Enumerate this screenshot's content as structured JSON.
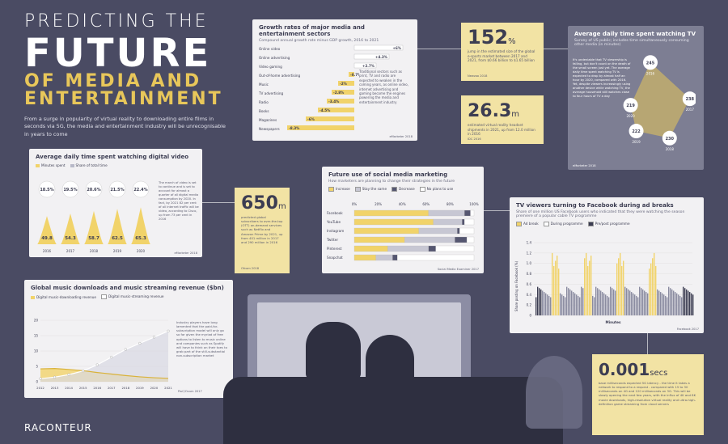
{
  "header": {
    "title1": "PREDICTING THE",
    "title2": "FUTURE",
    "title3": "OF MEDIA AND",
    "title4": "ENTERTAINMENT",
    "intro": "From a surge in popularity of virtual reality to downloading entire films in seconds via 5G, the media and entertainment industry will be unrecognisable in years to come"
  },
  "brand": {
    "logo": "RACONTEUR"
  },
  "colors": {
    "background": "#4a4b63",
    "gold": "#f1d36a",
    "panel": "#f2f1f3",
    "dark": "#3c3d52"
  },
  "growth": {
    "title": "Growth rates of major media and entertainment sectors",
    "subtitle": "Compound annual growth rate minus GDP growth, 2016 to 2021",
    "note": "Traditional sectors such as print, TV and radio are expected to weaken in the coming years, as online video, internet advertising and gaming become the engines powering the media and entertainment industry",
    "source": "eMarketer 2018"
  },
  "stat152": {
    "value": "152",
    "unit": "%",
    "text": "jump in the estimated size of the global e-sports market between 2017 and 2021, from $0.66 billion to $1.65 billion",
    "source": "Newzoo 2018"
  },
  "stat263": {
    "value": "26.3",
    "unit": "m",
    "text": "estimated virtual reality headset shipments in 2021, up from 12.0 million in 2016",
    "source": "IDC 2016"
  },
  "stat650": {
    "value": "650",
    "unit": "m",
    "text": "predicted global subscribers to over-the-top (OTT) on-demand services such as Netflix and Amazon Prime by 2021, up from 401 million in 2017 and 290 million in 2016",
    "source": "Ofcom 2018"
  },
  "stat0001": {
    "value": "0.001",
    "unit": "secs",
    "text": "base milliseconds expected 5G latency - the time it takes a network to respond to a request - compared with 15 to 30 milliseconds on 4G and 120 milliseconds on 3G. This will be slowly opening the next few years, with the influx of 4K and 8K movie downloads, high-resolution virtual reality and ultra-high-definition game streaming from cloud servers"
  },
  "tvtime": {
    "title": "Average daily time spent watching TV",
    "subtitle": "Survey of US public; includes time simultaneously consuming other media (in minutes)",
    "note": "It's undeniable that TV viewership is falling, but don't count on the death of the small screen just yet. The average daily time spent watching TV is expected to drop by almost half an hour by 2020, compared with 2016. Yet, despite viewers increasingly using another device while watching TV, the average household still watches close to four hours of TV a day",
    "source": "eMarketer 2018"
  },
  "video": {
    "title": "Average daily time spent watching digital video",
    "legend_minutes": "Minutes spent",
    "legend_share": "Share of total time",
    "note": "The march of video is set to continue and is set to account for almost a quarter of all digital media consumption by 2020. In fact, by 2021 82 per cent of all internet traffic will be video, according to Cisco, up from 73 per cent in 2016",
    "source": "eMarketer 2018"
  },
  "social": {
    "title": "Future use of social media marketing",
    "subtitle": "How marketers are planning to change their strategies in the future",
    "legend": [
      "Increase",
      "Stay the same",
      "Decrease",
      "No plans to use"
    ],
    "source": "Social Media Examiner 2017"
  },
  "facebook": {
    "title": "TV viewers turning to Facebook during ad breaks",
    "subtitle": "Share of one million US Facebook users who indicated that they were watching the season premiere of a popular cable TV programme",
    "legend": [
      "Ad break",
      "During programme",
      "Pre/post programme"
    ],
    "ylabel": "Share posting on Facebook (%)",
    "xlabel": "Minutes",
    "source": "Facebook 2017"
  },
  "music": {
    "title": "Global music downloads and music streaming revenue ($bn)",
    "legend_download": "Digital music-downloading revenue",
    "legend_stream": "Digital music-streaming revenue",
    "note": "Industry players have long lamented that the paid-for-subscription model will only go so far given the myriad of free options to listen to music online and companies such as Spotify will have to think on their toes to grab part of the still-substantial non-subscription market",
    "source": "PwC/Ovum 2017"
  },
  "chart_data": [
    {
      "type": "bar",
      "title": "Growth rates of major media and entertainment sectors",
      "categories": [
        "Online video",
        "Online advertising",
        "Video gaming",
        "Out-of-home advertising",
        "Music",
        "TV advertising",
        "Radio",
        "Books",
        "Magazines",
        "Newspapers"
      ],
      "values": [
        6.0,
        4.3,
        2.7,
        -0.7,
        -2.0,
        -2.8,
        -3.4,
        -4.5,
        -6.0,
        -8.3
      ],
      "labels": [
        "+6%",
        "+4.3%",
        "+2.7%",
        "-0.7%",
        "-2%",
        "-2.8%",
        "-3.4%",
        "-4.5%",
        "-6%",
        "-8.3%"
      ]
    },
    {
      "type": "scatter",
      "title": "Average daily time spent watching TV",
      "categories": [
        "2016",
        "2017",
        "2018",
        "2019",
        "2020"
      ],
      "values": [
        245,
        238,
        230,
        222,
        219
      ]
    },
    {
      "type": "bar",
      "title": "Average daily time spent watching digital video",
      "categories": [
        "2016",
        "2017",
        "2018",
        "2019",
        "2020"
      ],
      "series": [
        {
          "name": "Minutes spent",
          "values": [
            49.8,
            54.3,
            58.7,
            62.5,
            65.3
          ]
        },
        {
          "name": "Share of total time",
          "values": [
            18.5,
            19.5,
            20.6,
            21.5,
            22.4
          ],
          "labels": [
            "18.5%",
            "19.5%",
            "20.6%",
            "21.5%",
            "22.4%"
          ]
        }
      ]
    },
    {
      "type": "bar",
      "title": "Future use of social media marketing",
      "categories": [
        "Facebook",
        "YouTube",
        "Instagram",
        "Twitter",
        "Pinterest",
        "Snapchat"
      ],
      "x_ticks": [
        "0%",
        "20%",
        "40%",
        "60%",
        "80%",
        "100%"
      ],
      "series": [
        {
          "name": "Increase",
          "values": [
            62,
            66,
            54,
            42,
            28,
            18
          ]
        },
        {
          "name": "Stay the same",
          "values": [
            30,
            24,
            32,
            42,
            34,
            14
          ]
        },
        {
          "name": "Decrease",
          "values": [
            5,
            2,
            2,
            10,
            6,
            4
          ]
        },
        {
          "name": "No plans to use",
          "values": [
            3,
            8,
            12,
            6,
            32,
            64
          ]
        }
      ]
    },
    {
      "type": "bar",
      "title": "TV viewers turning to Facebook during ad breaks",
      "ylabel": "Share posting on Facebook (%)",
      "xlabel": "Minutes",
      "y_ticks": [
        "0",
        "0.2",
        "0.4",
        "0.6",
        "0.8",
        "1.0",
        "1.2",
        "1.4"
      ],
      "ylim": [
        0,
        1.4
      ]
    },
    {
      "type": "line",
      "title": "Global music downloads and music streaming revenue ($bn)",
      "x": [
        "2012",
        "2013",
        "2014",
        "2015",
        "2016",
        "2017",
        "2018",
        "2019",
        "2020",
        "2021"
      ],
      "y_ticks": [
        "0",
        "5",
        "10",
        "15",
        "20"
      ],
      "ylim": [
        0,
        20
      ],
      "series": [
        {
          "name": "Digital music-downloading revenue",
          "values": [
            4.2,
            4.3,
            4.0,
            3.6,
            3.0,
            2.5,
            2.0,
            1.6,
            1.3,
            1.1
          ]
        },
        {
          "name": "Digital music-streaming revenue",
          "values": [
            1.0,
            1.5,
            2.3,
            3.5,
            5.5,
            8.0,
            10.5,
            12.5,
            14.5,
            16.5
          ]
        }
      ]
    }
  ]
}
